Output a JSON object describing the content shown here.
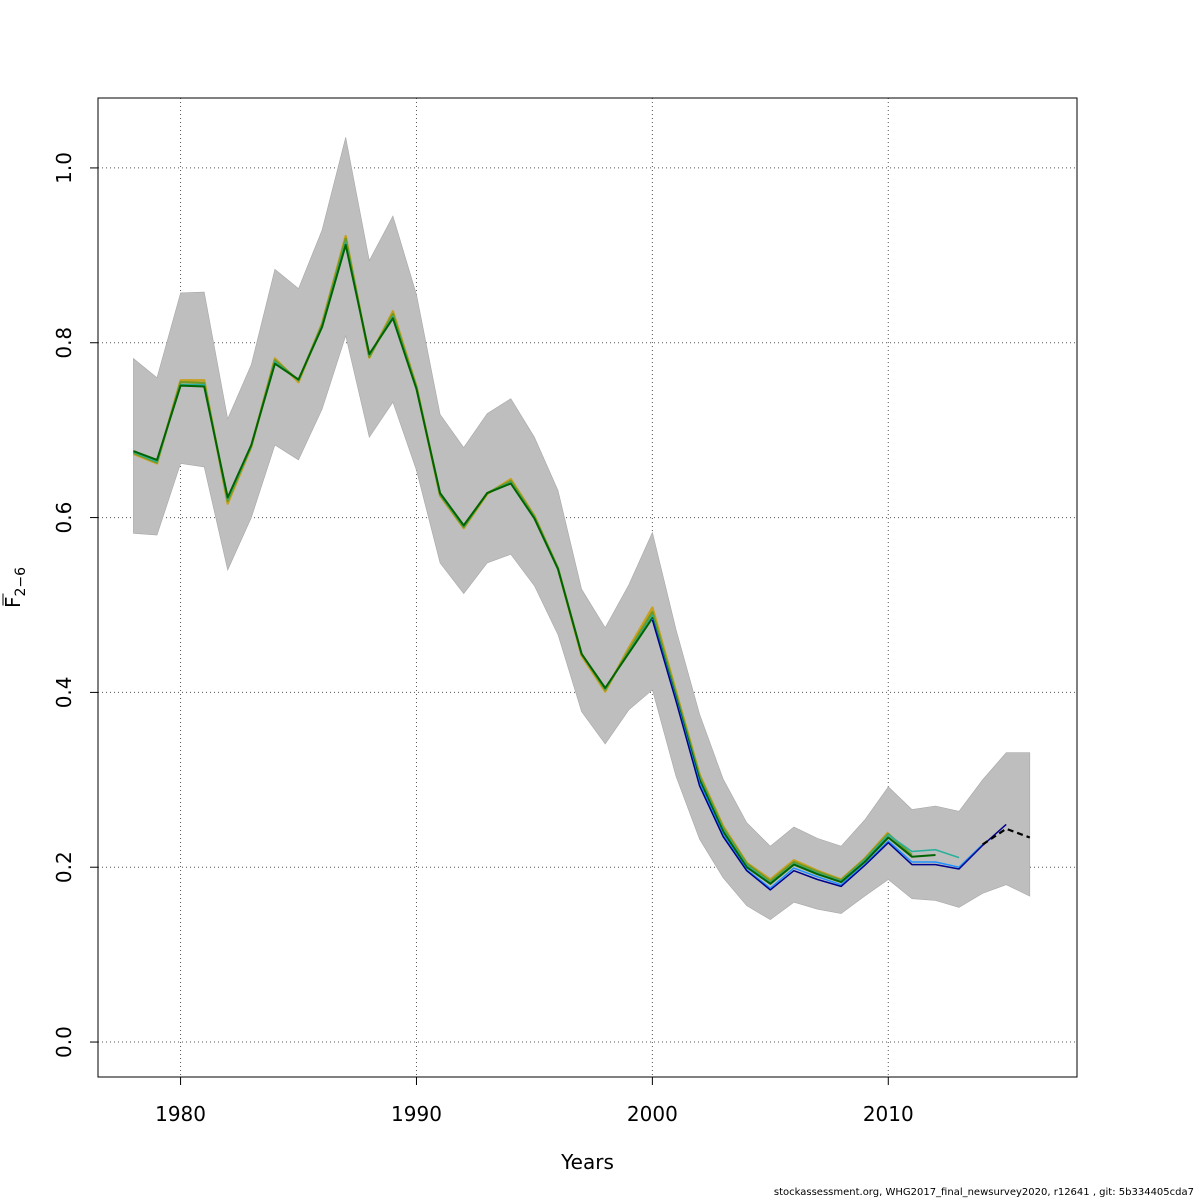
{
  "chart_data": {
    "type": "line",
    "xlabel": "Years",
    "ylabel": "F",
    "ylabel_sub": "2−6",
    "xlim": [
      1976.5,
      2018
    ],
    "ylim": [
      -0.04,
      1.08
    ],
    "x_ticks": [
      1980,
      1990,
      2000,
      2010
    ],
    "y_ticks": [
      0.0,
      0.2,
      0.4,
      0.6,
      0.8,
      1.0
    ],
    "y_tick_labels": [
      "0.0",
      "0.2",
      "0.4",
      "0.6",
      "0.8",
      "1.0"
    ],
    "grid": true,
    "band": {
      "color": "#bebebe",
      "x": [
        1978,
        1979,
        1980,
        1981,
        1982,
        1983,
        1984,
        1985,
        1986,
        1987,
        1988,
        1989,
        1990,
        1991,
        1992,
        1993,
        1994,
        1995,
        1996,
        1997,
        1998,
        1999,
        2000,
        2001,
        2002,
        2003,
        2004,
        2005,
        2006,
        2007,
        2008,
        2009,
        2010,
        2011,
        2012,
        2013,
        2014,
        2015,
        2016
      ],
      "upper": [
        0.782,
        0.76,
        0.857,
        0.858,
        0.713,
        0.775,
        0.884,
        0.862,
        0.929,
        1.035,
        0.894,
        0.945,
        0.855,
        0.718,
        0.68,
        0.719,
        0.736,
        0.692,
        0.631,
        0.518,
        0.474,
        0.523,
        0.583,
        0.472,
        0.375,
        0.301,
        0.251,
        0.224,
        0.246,
        0.233,
        0.224,
        0.254,
        0.292,
        0.266,
        0.27,
        0.264,
        0.3,
        0.331,
        0.331
      ],
      "lower": [
        0.582,
        0.58,
        0.662,
        0.658,
        0.54,
        0.6,
        0.683,
        0.666,
        0.724,
        0.808,
        0.692,
        0.732,
        0.654,
        0.548,
        0.513,
        0.548,
        0.558,
        0.522,
        0.466,
        0.378,
        0.341,
        0.38,
        0.403,
        0.304,
        0.232,
        0.188,
        0.156,
        0.14,
        0.16,
        0.152,
        0.147,
        0.167,
        0.186,
        0.164,
        0.162,
        0.154,
        0.17,
        0.18,
        0.167
      ]
    },
    "series": [
      {
        "color": "#c8a020",
        "width": 2.4,
        "x": [
          1978,
          1979,
          1980,
          1981,
          1982,
          1983,
          1984,
          1985,
          1986,
          1987,
          1988,
          1989,
          1990,
          1991,
          1992,
          1993,
          1994,
          1995,
          1996,
          1997,
          1998,
          1999,
          2000,
          2001,
          2002,
          2003,
          2004,
          2005,
          2006,
          2007,
          2008,
          2009,
          2010
        ],
        "y": [
          0.673,
          0.662,
          0.757,
          0.757,
          0.616,
          0.681,
          0.782,
          0.755,
          0.822,
          0.922,
          0.783,
          0.836,
          0.75,
          0.625,
          0.588,
          0.627,
          0.644,
          0.602,
          0.542,
          0.442,
          0.401,
          0.451,
          0.497,
          0.401,
          0.306,
          0.247,
          0.205,
          0.186,
          0.208,
          0.196,
          0.186,
          0.21,
          0.24
        ]
      },
      {
        "color": "#6e9a28",
        "width": 2.2,
        "x": [
          1978,
          1979,
          1980,
          1981,
          1982,
          1983,
          1984,
          1985,
          1986,
          1987,
          1988,
          1989,
          1990,
          1991,
          1992,
          1993,
          1994,
          1995,
          1996,
          1997,
          1998,
          1999,
          2000,
          2001,
          2002,
          2003,
          2004,
          2005,
          2006,
          2007,
          2008,
          2009,
          2010,
          2011
        ],
        "y": [
          0.674,
          0.663,
          0.755,
          0.754,
          0.619,
          0.682,
          0.78,
          0.757,
          0.821,
          0.919,
          0.784,
          0.833,
          0.749,
          0.626,
          0.589,
          0.628,
          0.642,
          0.601,
          0.542,
          0.444,
          0.403,
          0.448,
          0.492,
          0.398,
          0.304,
          0.245,
          0.204,
          0.184,
          0.206,
          0.195,
          0.185,
          0.209,
          0.238,
          0.214
        ]
      },
      {
        "color": "#2ab09a",
        "width": 1.6,
        "x": [
          1978,
          1979,
          1980,
          1981,
          1982,
          1983,
          1984,
          1985,
          1986,
          1987,
          1988,
          1989,
          1990,
          1991,
          1992,
          1993,
          1994,
          1995,
          1996,
          1997,
          1998,
          1999,
          2000,
          2001,
          2002,
          2003,
          2004,
          2005,
          2006,
          2007,
          2008,
          2009,
          2010,
          2011,
          2012,
          2013
        ],
        "y": [
          0.675,
          0.664,
          0.752,
          0.752,
          0.621,
          0.682,
          0.778,
          0.757,
          0.819,
          0.915,
          0.786,
          0.83,
          0.748,
          0.627,
          0.59,
          0.628,
          0.64,
          0.6,
          0.542,
          0.444,
          0.404,
          0.446,
          0.488,
          0.396,
          0.302,
          0.243,
          0.202,
          0.182,
          0.204,
          0.193,
          0.184,
          0.208,
          0.237,
          0.218,
          0.22,
          0.211
        ]
      },
      {
        "color": "#006400",
        "width": 2.0,
        "x": [
          1978,
          1979,
          1980,
          1981,
          1982,
          1983,
          1984,
          1985,
          1986,
          1987,
          1988,
          1989,
          1990,
          1991,
          1992,
          1993,
          1994,
          1995,
          1996,
          1997,
          1998,
          1999,
          2000,
          2001,
          2002,
          2003,
          2004,
          2005,
          2006,
          2007,
          2008,
          2009,
          2010,
          2011,
          2012
        ],
        "y": [
          0.676,
          0.666,
          0.751,
          0.75,
          0.623,
          0.683,
          0.776,
          0.758,
          0.818,
          0.912,
          0.787,
          0.828,
          0.747,
          0.628,
          0.591,
          0.628,
          0.639,
          0.599,
          0.541,
          0.444,
          0.405,
          0.445,
          0.485,
          0.394,
          0.3,
          0.241,
          0.2,
          0.181,
          0.203,
          0.192,
          0.183,
          0.206,
          0.234,
          0.212,
          0.214
        ]
      },
      {
        "color": "#1e90ff",
        "width": 1.5,
        "x": [
          2000,
          2001,
          2002,
          2003,
          2004,
          2005,
          2006,
          2007,
          2008,
          2009,
          2010,
          2011,
          2012,
          2013,
          2014
        ],
        "y": [
          0.484,
          0.392,
          0.296,
          0.237,
          0.197,
          0.176,
          0.199,
          0.189,
          0.18,
          0.203,
          0.23,
          0.206,
          0.206,
          0.2,
          0.226
        ]
      },
      {
        "color": "#00008b",
        "width": 1.5,
        "x": [
          2000,
          2001,
          2002,
          2003,
          2004,
          2005,
          2006,
          2007,
          2008,
          2009,
          2010,
          2011,
          2012,
          2013,
          2014,
          2015
        ],
        "y": [
          0.483,
          0.39,
          0.293,
          0.235,
          0.196,
          0.174,
          0.196,
          0.186,
          0.178,
          0.202,
          0.228,
          0.203,
          0.203,
          0.198,
          0.225,
          0.249
        ]
      },
      {
        "color": "#000000",
        "width": 2.2,
        "dash": "6,4",
        "x": [
          2014,
          2015,
          2016
        ],
        "y": [
          0.226,
          0.244,
          0.234
        ]
      }
    ]
  },
  "footer": "stockassessment.org, WHG2017_final_newsurvey2020, r12641 , git: 5b334405cda7"
}
